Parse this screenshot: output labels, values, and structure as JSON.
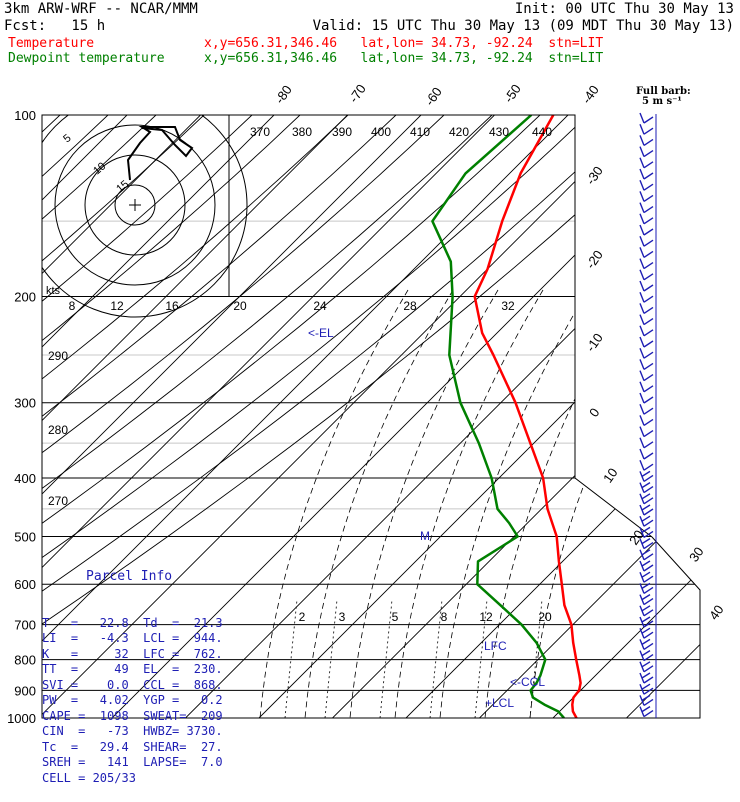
{
  "header": {
    "model": "3km ARW-WRF -- NCAR/MMM",
    "init": "Init: 00 UTC Thu 30 May 13",
    "fcst": "Fcst:   15 h",
    "valid": "Valid: 15 UTC Thu 30 May 13 (09 MDT Thu 30 May 13)",
    "temp_label": "Temperature",
    "dew_label": "Dewpoint temperature",
    "loc_info": "x,y=656.31,346.46   lat,lon= 34.73, -92.24  stn=LIT",
    "temp_color": "#ff0000",
    "dew_color": "#008000"
  },
  "barb_legend": {
    "title": "Full barb:",
    "unit": "5 m s⁻¹"
  },
  "hodograph": {
    "ring_labels": [
      "5",
      "10",
      "15"
    ],
    "units": "kts"
  },
  "annotations": {
    "el": "<-EL",
    "lfc": "LFC",
    "ccl": "<-CCL",
    "lcl": "+LCL",
    "m": "M"
  },
  "parcel_info": {
    "title": "Parcel Info",
    "rows": [
      "T   =   22.8  Td  =  21.3",
      "LI  =   -4.3  LCL =  944.",
      "K   =     32  LFC =  762.",
      "TT  =     49  EL  =  230.",
      "SVI =    0.0  CCL =  868.",
      "PW  =   4.02  YGP =   0.2",
      "CAPE =  1098  SWEAT=  209",
      "CIN  =   -73  HWBZ= 3730.",
      "Tc  =   29.4  SHEAR=  27.",
      "SREH =   141  LAPSE=  7.0",
      "CELL = 205/33"
    ]
  },
  "chart_data": {
    "type": "line",
    "title": "",
    "xlabel": "",
    "ylabel": "",
    "pressure_levels_hpa": [
      100,
      200,
      300,
      400,
      500,
      600,
      700,
      800,
      900,
      1000
    ],
    "pressure_labels": [
      "100",
      "200",
      "300",
      "400",
      "500",
      "600",
      "700",
      "800",
      "900",
      "1000"
    ],
    "isotherm_labels_top": [
      "-80",
      "-70",
      "-60",
      "-50",
      "-40"
    ],
    "isotherm_labels_right": [
      "-30",
      "-20",
      "-10",
      "0",
      "10",
      "20",
      "30",
      "40"
    ],
    "theta_labels": [
      "370",
      "380",
      "390",
      "400",
      "410",
      "420",
      "430",
      "440"
    ],
    "theta_left_labels": [
      "290",
      "280",
      "270"
    ],
    "mixing_ratio_labels": [
      "2",
      "3",
      "5",
      "8",
      "12",
      "20"
    ],
    "hodograph_speed_labels": [
      "8",
      "12",
      "16",
      "20",
      "24",
      "28",
      "32"
    ],
    "series": [
      {
        "name": "Temperature",
        "color": "#ff0000",
        "points": [
          [
            1000,
            23.2
          ],
          [
            975,
            21.8
          ],
          [
            950,
            20.8
          ],
          [
            925,
            20.0
          ],
          [
            900,
            19.8
          ],
          [
            875,
            19.0
          ],
          [
            850,
            17.8
          ],
          [
            800,
            15.2
          ],
          [
            750,
            12.5
          ],
          [
            700,
            9.8
          ],
          [
            650,
            6.2
          ],
          [
            600,
            3.0
          ],
          [
            550,
            -0.5
          ],
          [
            500,
            -4.2
          ],
          [
            450,
            -9.2
          ],
          [
            400,
            -14.0
          ],
          [
            350,
            -20.5
          ],
          [
            300,
            -28.0
          ],
          [
            250,
            -37.5
          ],
          [
            230,
            -42.0
          ],
          [
            200,
            -48.0
          ],
          [
            180,
            -50.0
          ],
          [
            150,
            -54.5
          ],
          [
            125,
            -58.5
          ],
          [
            100,
            -62.0
          ]
        ]
      },
      {
        "name": "Dewpoint temperature",
        "color": "#008000",
        "points": [
          [
            1000,
            21.5
          ],
          [
            975,
            19.8
          ],
          [
            950,
            17.0
          ],
          [
            925,
            14.5
          ],
          [
            900,
            13.2
          ],
          [
            875,
            13.0
          ],
          [
            850,
            12.5
          ],
          [
            800,
            11.0
          ],
          [
            750,
            7.5
          ],
          [
            700,
            3.0
          ],
          [
            650,
            -2.5
          ],
          [
            600,
            -8.5
          ],
          [
            550,
            -11.5
          ],
          [
            500,
            -9.5
          ],
          [
            475,
            -12.5
          ],
          [
            450,
            -16.0
          ],
          [
            400,
            -21.0
          ],
          [
            350,
            -27.5
          ],
          [
            300,
            -35.5
          ],
          [
            250,
            -43.5
          ],
          [
            200,
            -51.0
          ],
          [
            175,
            -56.0
          ],
          [
            150,
            -64.0
          ],
          [
            125,
            -66.0
          ],
          [
            100,
            -65.0
          ]
        ]
      }
    ],
    "grid": true,
    "legend": "top-left"
  }
}
